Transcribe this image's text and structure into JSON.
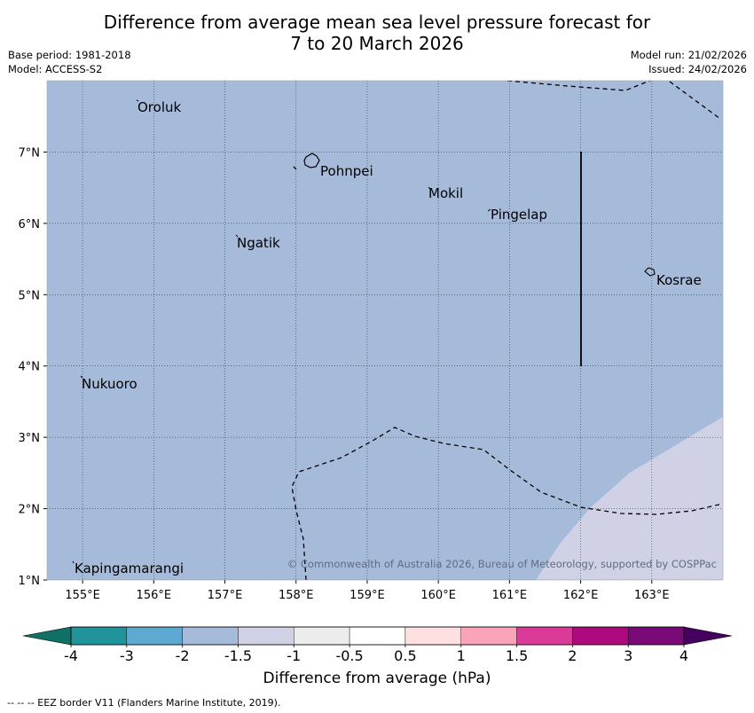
{
  "title_line1": "Difference from average mean sea level pressure forecast for",
  "title_line2": "7 to 20 March 2026",
  "base_period": "Base period: 1981-2018",
  "model": "Model: ACCESS-S2",
  "model_run": "Model run: 21/02/2026",
  "issued": "Issued: 24/02/2026",
  "copyright": "© Commonwealth of Australia 2026, Bureau of Meteorology, supported by COSPPac",
  "footnote": "--  --  -- EEZ border V11 (Flanders Marine Institute, 2019).",
  "map": {
    "lon_range": [
      154.5,
      164.0
    ],
    "lat_range": [
      1.0,
      8.0
    ],
    "lon_ticks": [
      {
        "value": 155,
        "label": "155°E"
      },
      {
        "value": 156,
        "label": "156°E"
      },
      {
        "value": 157,
        "label": "157°E"
      },
      {
        "value": 158,
        "label": "158°E"
      },
      {
        "value": 159,
        "label": "159°E"
      },
      {
        "value": 160,
        "label": "160°E"
      },
      {
        "value": 161,
        "label": "161°E"
      },
      {
        "value": 162,
        "label": "162°E"
      },
      {
        "value": 163,
        "label": "163°E"
      }
    ],
    "lat_ticks": [
      {
        "value": 7,
        "label": "7°N"
      },
      {
        "value": 6,
        "label": "6°N"
      },
      {
        "value": 5,
        "label": "5°N"
      },
      {
        "value": 4,
        "label": "4°N"
      },
      {
        "value": 3,
        "label": "3°N"
      },
      {
        "value": 2,
        "label": "2°N"
      },
      {
        "value": 1,
        "label": "1°N"
      }
    ],
    "places": [
      {
        "name": "Oroluk",
        "lon": 155.8,
        "lat": 7.6
      },
      {
        "name": "Pohnpei",
        "lon": 158.3,
        "lat": 6.9
      },
      {
        "name": "Mokil",
        "lon": 159.9,
        "lat": 6.5
      },
      {
        "name": "Pingelap",
        "lon": 160.75,
        "lat": 6.2
      },
      {
        "name": "Ngatik",
        "lon": 157.2,
        "lat": 5.8
      },
      {
        "name": "Kosrae",
        "lon": 163.0,
        "lat": 5.3
      },
      {
        "name": "Nukuoro",
        "lon": 155.0,
        "lat": 3.8
      },
      {
        "name": "Kapingamarangi",
        "lon": 154.95,
        "lat": 1.25
      }
    ],
    "background_category": "-2 to -1.5",
    "background_color": "#a6bad9",
    "anomaly_region_category": "-1.5 to -1",
    "anomaly_region_color": "#d1d1e6"
  },
  "colorbar": {
    "title": "Difference from average (hPa)",
    "ticks": [
      "-4",
      "-3",
      "-2",
      "-1.5",
      "-1",
      "-0.5",
      "0.5",
      "1",
      "1.5",
      "2",
      "3",
      "4"
    ],
    "below_color": "#117066",
    "above_color": "#46005e",
    "bins": [
      {
        "range": "-4 to -3",
        "color": "#20949a"
      },
      {
        "range": "-3 to -2",
        "color": "#5ea9d1"
      },
      {
        "range": "-2 to -1.5",
        "color": "#a6bad9"
      },
      {
        "range": "-1.5 to -1",
        "color": "#d1d1e6"
      },
      {
        "range": "-1 to -0.5",
        "color": "#ececec"
      },
      {
        "range": "-0.5 to 0.5",
        "color": "#ffffff"
      },
      {
        "range": "0.5 to 1",
        "color": "#ffe0e0"
      },
      {
        "range": "1 to 1.5",
        "color": "#fba3b8"
      },
      {
        "range": "1.5 to 2",
        "color": "#dc3a98"
      },
      {
        "range": "2 to 3",
        "color": "#ad0a7e"
      },
      {
        "range": "3 to 4",
        "color": "#7a0a78"
      }
    ]
  }
}
